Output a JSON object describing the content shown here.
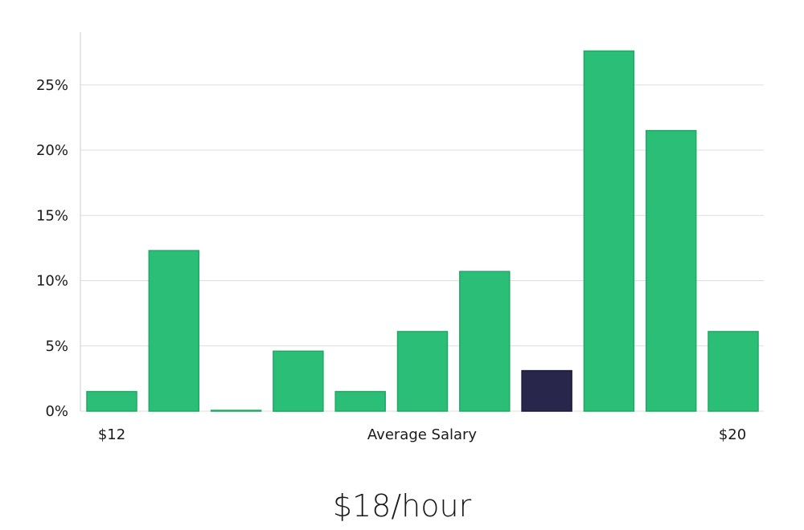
{
  "chart_data": {
    "type": "bar",
    "title": "",
    "xlabel": "Average Salary",
    "ylabel": "",
    "ylim": [
      0,
      29
    ],
    "y_ticks": [
      0,
      5,
      10,
      15,
      20,
      25
    ],
    "y_tick_labels": [
      "0%",
      "5%",
      "10%",
      "15%",
      "20%",
      "25%"
    ],
    "x_start_label": "$12",
    "x_end_label": "$20",
    "values": [
      1.5,
      12.3,
      0.05,
      4.6,
      1.5,
      6.1,
      10.7,
      3.1,
      27.6,
      21.5,
      6.1
    ],
    "highlight_index": 7,
    "grid": true,
    "colors": {
      "bar": "#2abe77",
      "bar_edge": "#22a866",
      "highlight": "#28264a",
      "grid": "#dddddd",
      "axis": "#cccccc"
    }
  },
  "average_salary": "$18/hour"
}
